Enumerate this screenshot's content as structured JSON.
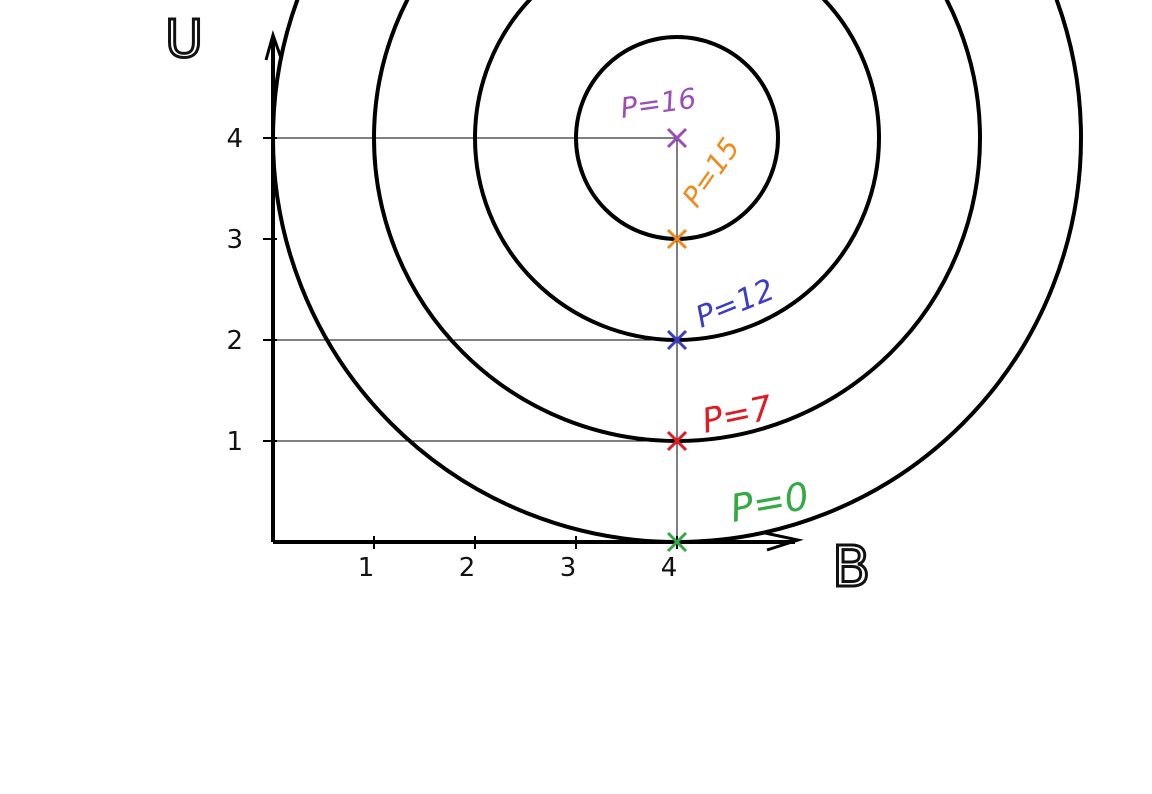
{
  "chart_data": {
    "type": "scatter",
    "xlabel": "B",
    "ylabel": "U",
    "xlim": [
      0,
      4
    ],
    "ylim": [
      0,
      4
    ],
    "x_ticks": [
      1,
      2,
      3,
      4
    ],
    "y_ticks": [
      1,
      2,
      3,
      4
    ],
    "contours": [
      {
        "center": [
          4,
          4
        ],
        "radius": 1
      },
      {
        "center": [
          4,
          4
        ],
        "radius": 2
      },
      {
        "center": [
          4,
          4
        ],
        "radius": 3
      },
      {
        "center": [
          4,
          4
        ],
        "radius": 4
      }
    ],
    "points": [
      {
        "x": 4,
        "y": 4,
        "label": "P=16",
        "color": "#9b4fb5"
      },
      {
        "x": 4,
        "y": 3,
        "label": "P=15",
        "color": "#f08a1c"
      },
      {
        "x": 4,
        "y": 2,
        "label": "P=12",
        "color": "#3c3cc8"
      },
      {
        "x": 4,
        "y": 1,
        "label": "P=7",
        "color": "#e01b24"
      },
      {
        "x": 4,
        "y": 0,
        "label": "P=0",
        "color": "#33aa44"
      }
    ],
    "guide_lines_y": [
      4,
      2,
      1
    ]
  }
}
